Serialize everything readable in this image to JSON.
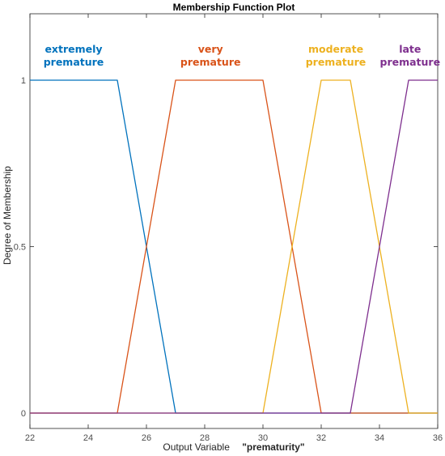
{
  "chart_data": {
    "type": "line",
    "title": "Membership Function Plot",
    "xlabel": "Output Variable",
    "xlabel_variable": "\"prematurity\"",
    "ylabel": "Degree of Membership",
    "xlim": [
      22,
      36
    ],
    "ylim": [
      0,
      1
    ],
    "xticks": [
      22,
      24,
      26,
      28,
      30,
      32,
      34,
      36
    ],
    "yticks": [
      0,
      0.5,
      1
    ],
    "ytick_labels": [
      "0",
      "0.5",
      "1"
    ],
    "grid": false,
    "series": [
      {
        "name": "extremely premature",
        "label_lines": [
          "extremely",
          "premature"
        ],
        "color": "#0072BD",
        "shape": "trapezoidal",
        "x": [
          22,
          25,
          27,
          36
        ],
        "y": [
          1,
          1,
          0,
          0
        ]
      },
      {
        "name": "very premature",
        "label_lines": [
          "very",
          "premature"
        ],
        "color": "#D95319",
        "shape": "trapezoidal",
        "x": [
          22,
          25,
          27,
          30,
          32,
          36
        ],
        "y": [
          0,
          0,
          1,
          1,
          0,
          0
        ]
      },
      {
        "name": "moderate premature",
        "label_lines": [
          "moderate",
          "premature"
        ],
        "color": "#EDB120",
        "shape": "trapezoidal",
        "x": [
          22,
          30,
          32,
          33,
          35,
          36
        ],
        "y": [
          0,
          0,
          1,
          1,
          0,
          0
        ]
      },
      {
        "name": "late premature",
        "label_lines": [
          "late",
          "premature"
        ],
        "color": "#7E2F8E",
        "shape": "trapezoidal",
        "x": [
          22,
          33,
          35,
          36
        ],
        "y": [
          0,
          0,
          1,
          1
        ]
      }
    ]
  }
}
